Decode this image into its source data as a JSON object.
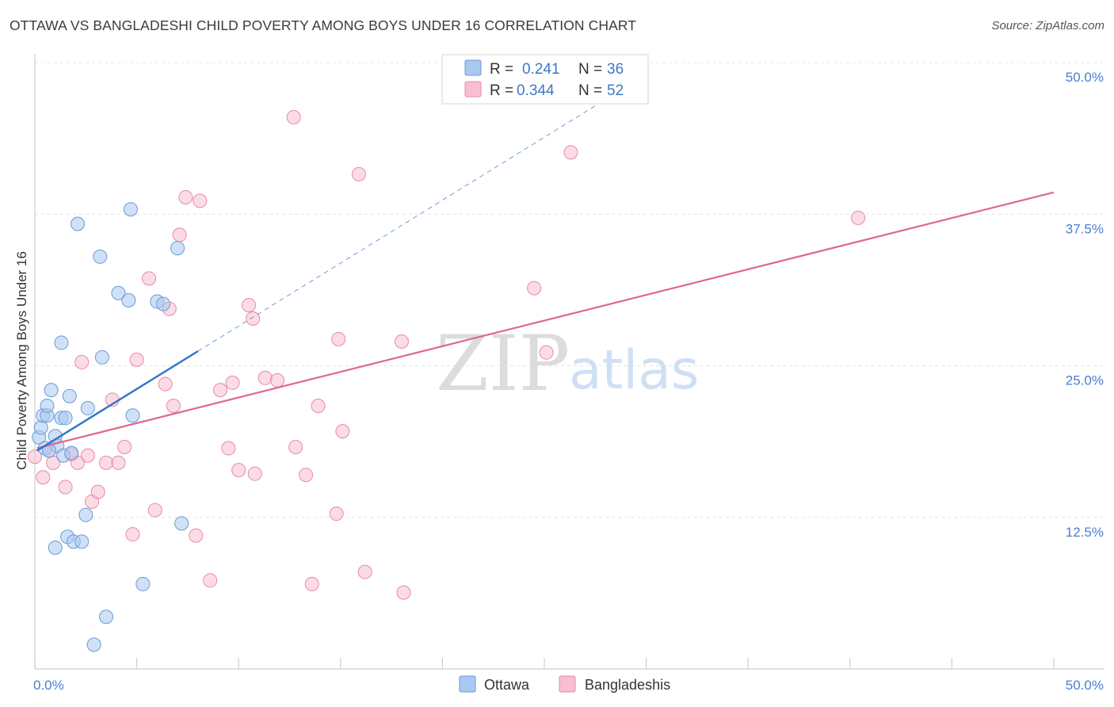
{
  "title": "OTTAWA VS BANGLADESHI CHILD POVERTY AMONG BOYS UNDER 16 CORRELATION CHART",
  "source": "Source: ZipAtlas.com",
  "watermark": {
    "zip": "ZIP",
    "atlas": "atlas"
  },
  "colors": {
    "ottawa_fill": "#a9c8f0",
    "ottawa_stroke": "#6a9ad8",
    "ottawa_line": "#2f74c8",
    "bangla_fill": "#f7bfd0",
    "bangla_stroke": "#e889a6",
    "bangla_line": "#e0678f",
    "grid": "#e4e4e4",
    "tick_text": "#4a7fcf"
  },
  "legend": {
    "rows": [
      {
        "r_label": "R =",
        "r_value": "0.241",
        "n_label": "N =",
        "n_value": "36"
      },
      {
        "r_label": "R =",
        "r_value": "0.344",
        "n_label": "N =",
        "n_value": "52"
      }
    ]
  },
  "bottom_legend": [
    "Ottawa",
    "Bangladeshis"
  ],
  "chart_data": {
    "type": "scatter",
    "title": "OTTAWA VS BANGLADESHI CHILD POVERTY AMONG BOYS UNDER 16 CORRELATION CHART",
    "xlabel": "",
    "ylabel": "Child Poverty Among Boys Under 16",
    "xlim": [
      0,
      50
    ],
    "ylim": [
      0,
      50
    ],
    "x_tick_labels": [
      "0.0%",
      "50.0%"
    ],
    "y_ticks": [
      12.5,
      25.0,
      37.5,
      50.0
    ],
    "y_tick_labels": [
      "12.5%",
      "25.0%",
      "37.5%",
      "50.0%"
    ],
    "grid": true,
    "series": [
      {
        "name": "Ottawa",
        "R": 0.241,
        "N": 36,
        "trend": {
          "x0": 0.1,
          "y0": 18.0,
          "x1": 8.0,
          "y1": 26.2,
          "dash_to_x": 30.0
        },
        "points": [
          [
            0.2,
            19.1
          ],
          [
            0.3,
            19.9
          ],
          [
            0.4,
            20.9
          ],
          [
            0.5,
            18.2
          ],
          [
            0.6,
            20.9
          ],
          [
            0.6,
            21.7
          ],
          [
            0.8,
            23.0
          ],
          [
            1.0,
            19.2
          ],
          [
            1.0,
            10.0
          ],
          [
            1.1,
            18.4
          ],
          [
            1.3,
            26.9
          ],
          [
            1.3,
            20.7
          ],
          [
            1.4,
            17.6
          ],
          [
            1.5,
            20.7
          ],
          [
            1.6,
            10.9
          ],
          [
            1.7,
            22.5
          ],
          [
            1.8,
            17.8
          ],
          [
            1.9,
            10.5
          ],
          [
            2.1,
            36.7
          ],
          [
            2.3,
            10.5
          ],
          [
            2.5,
            12.7
          ],
          [
            2.6,
            21.5
          ],
          [
            2.9,
            2.0
          ],
          [
            3.2,
            34.0
          ],
          [
            3.3,
            25.7
          ],
          [
            3.5,
            4.3
          ],
          [
            4.1,
            31.0
          ],
          [
            4.6,
            30.4
          ],
          [
            4.7,
            37.9
          ],
          [
            4.8,
            20.9
          ],
          [
            5.3,
            7.0
          ],
          [
            6.0,
            30.3
          ],
          [
            6.3,
            30.1
          ],
          [
            7.0,
            34.7
          ],
          [
            7.2,
            12.0
          ],
          [
            0.7,
            18.0
          ]
        ]
      },
      {
        "name": "Bangladeshis",
        "R": 0.344,
        "N": 52,
        "trend": {
          "x0": 0.1,
          "y0": 18.2,
          "x1": 50.0,
          "y1": 39.3
        },
        "points": [
          [
            0.0,
            17.5
          ],
          [
            0.4,
            15.8
          ],
          [
            0.7,
            18.0
          ],
          [
            0.9,
            17.0
          ],
          [
            1.5,
            15.0
          ],
          [
            1.8,
            17.7
          ],
          [
            2.1,
            17.0
          ],
          [
            2.3,
            25.3
          ],
          [
            2.6,
            17.6
          ],
          [
            2.8,
            13.8
          ],
          [
            3.1,
            14.6
          ],
          [
            3.5,
            17.0
          ],
          [
            3.8,
            22.2
          ],
          [
            4.1,
            17.0
          ],
          [
            4.4,
            18.3
          ],
          [
            4.8,
            11.1
          ],
          [
            5.0,
            25.5
          ],
          [
            5.6,
            32.2
          ],
          [
            5.9,
            13.1
          ],
          [
            6.4,
            23.5
          ],
          [
            6.6,
            29.7
          ],
          [
            6.8,
            21.7
          ],
          [
            7.1,
            35.8
          ],
          [
            7.4,
            38.9
          ],
          [
            7.9,
            11.0
          ],
          [
            8.1,
            38.6
          ],
          [
            8.6,
            7.3
          ],
          [
            9.1,
            23.0
          ],
          [
            9.5,
            18.2
          ],
          [
            9.7,
            23.6
          ],
          [
            10.0,
            16.4
          ],
          [
            10.5,
            30.0
          ],
          [
            10.7,
            28.9
          ],
          [
            10.8,
            16.1
          ],
          [
            11.3,
            24.0
          ],
          [
            11.9,
            23.8
          ],
          [
            12.7,
            45.5
          ],
          [
            12.8,
            18.3
          ],
          [
            13.3,
            16.0
          ],
          [
            13.6,
            7.0
          ],
          [
            13.9,
            21.7
          ],
          [
            14.8,
            12.8
          ],
          [
            14.9,
            27.2
          ],
          [
            15.1,
            19.6
          ],
          [
            15.9,
            40.8
          ],
          [
            16.2,
            8.0
          ],
          [
            18.0,
            27.0
          ],
          [
            18.1,
            6.3
          ],
          [
            24.5,
            31.4
          ],
          [
            25.1,
            26.1
          ],
          [
            26.3,
            42.6
          ],
          [
            40.4,
            37.2
          ]
        ]
      }
    ]
  }
}
